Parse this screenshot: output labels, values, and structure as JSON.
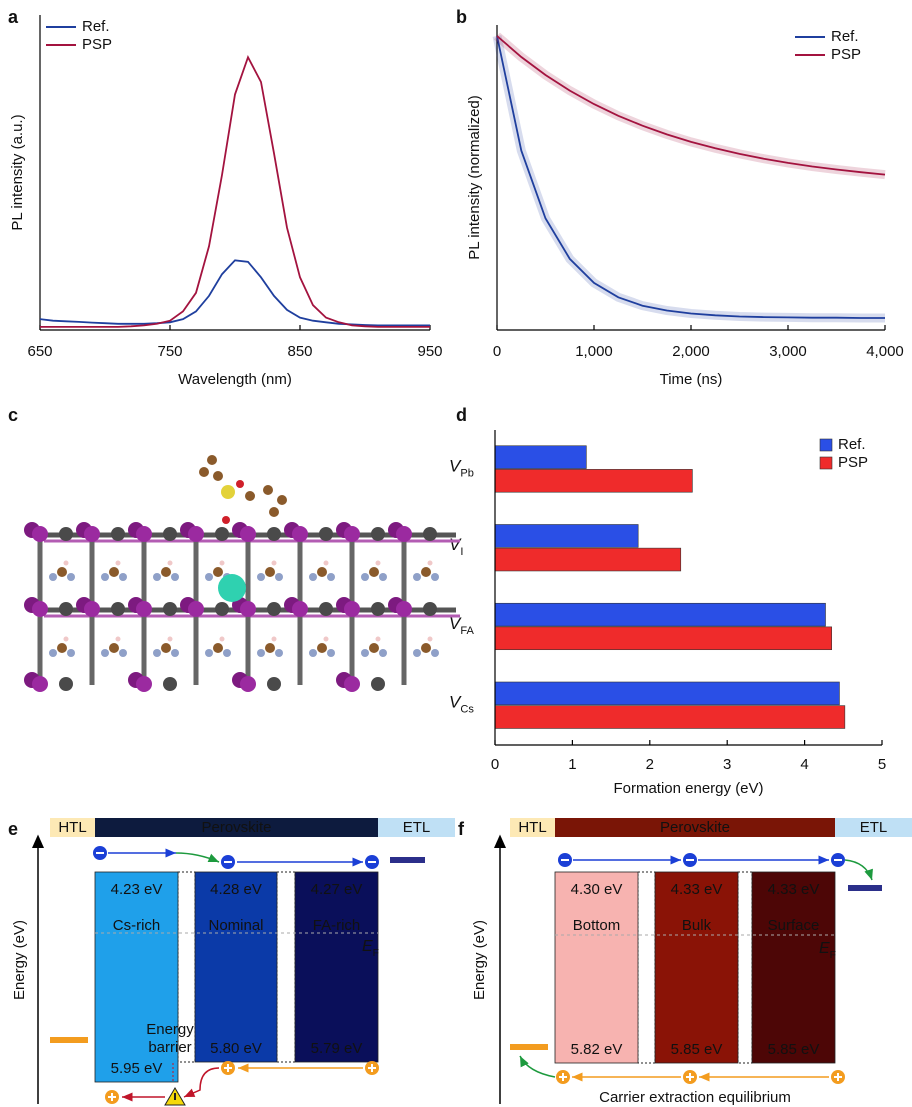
{
  "panel_labels": [
    "a",
    "b",
    "c",
    "d",
    "e",
    "f"
  ],
  "chart_data": [
    {
      "type": "line",
      "x_label": "Wavelength (nm)",
      "y_label": "PL intensity (a.u.)",
      "x": [
        650,
        660,
        670,
        680,
        690,
        700,
        710,
        720,
        730,
        740,
        750,
        760,
        770,
        780,
        790,
        800,
        810,
        820,
        830,
        840,
        850,
        860,
        870,
        880,
        890,
        900,
        910,
        920,
        930,
        940,
        950
      ],
      "series": [
        {
          "name": "Ref.",
          "color": "#1f3f9e",
          "values": [
            0.035,
            0.03,
            0.028,
            0.026,
            0.024,
            0.022,
            0.02,
            0.02,
            0.02,
            0.022,
            0.025,
            0.035,
            0.06,
            0.11,
            0.18,
            0.225,
            0.22,
            0.17,
            0.11,
            0.065,
            0.04,
            0.03,
            0.025,
            0.02,
            0.018,
            0.016,
            0.015,
            0.015,
            0.015,
            0.015,
            0.015
          ]
        },
        {
          "name": "PSP",
          "color": "#a3133f",
          "values": [
            0.01,
            0.01,
            0.01,
            0.01,
            0.01,
            0.01,
            0.01,
            0.012,
            0.015,
            0.02,
            0.03,
            0.06,
            0.12,
            0.27,
            0.5,
            0.76,
            0.88,
            0.8,
            0.57,
            0.33,
            0.17,
            0.08,
            0.04,
            0.025,
            0.015,
            0.012,
            0.01,
            0.01,
            0.01,
            0.01,
            0.01
          ]
        }
      ],
      "xlim": [
        650,
        950
      ],
      "ylim": [
        0,
        1
      ],
      "xticks": [
        650,
        750,
        850,
        950
      ],
      "legend": "upper left"
    },
    {
      "type": "line",
      "x_label": "Time (ns)",
      "y_label": "PL intensity (normalized)",
      "x": [
        0,
        250,
        500,
        750,
        1000,
        1250,
        1500,
        1750,
        2000,
        2250,
        2500,
        2750,
        3000,
        3250,
        3500,
        3750,
        4000
      ],
      "series": [
        {
          "name": "Ref.",
          "color": "#1f3f9e",
          "values": [
            0.98,
            0.598,
            0.372,
            0.237,
            0.157,
            0.109,
            0.081,
            0.065,
            0.055,
            0.049,
            0.045,
            0.043,
            0.042,
            0.041,
            0.041,
            0.04,
            0.04
          ]
        },
        {
          "name": "PSP",
          "color": "#a3133f",
          "values": [
            0.98,
            0.91,
            0.85,
            0.798,
            0.753,
            0.714,
            0.681,
            0.652,
            0.627,
            0.606,
            0.587,
            0.571,
            0.557,
            0.545,
            0.535,
            0.526,
            0.518
          ]
        }
      ],
      "xlim": [
        0,
        4000
      ],
      "ylim": [
        0,
        1
      ],
      "xticks": [
        0,
        {
          "value": 1000,
          "label": "1,000"
        },
        {
          "value": 2000,
          "label": "2,000"
        },
        {
          "value": 3000,
          "label": "3,000"
        },
        {
          "value": 4000,
          "label": "4,000"
        }
      ],
      "legend": "upper right"
    },
    {
      "type": "bar",
      "horizontal": true,
      "x_label": "Formation energy (eV)",
      "categories": [
        {
          "symbol": "V",
          "subscript": "Pb"
        },
        {
          "symbol": "V",
          "subscript": "I"
        },
        {
          "symbol": "V",
          "subscript": "FA"
        },
        {
          "symbol": "V",
          "subscript": "Cs"
        }
      ],
      "series": [
        {
          "name": "Ref.",
          "color": "#2a4fe6",
          "values": [
            1.18,
            1.85,
            4.27,
            4.45
          ]
        },
        {
          "name": "PSP",
          "color": "#ef2b2b",
          "values": [
            2.55,
            2.4,
            4.35,
            4.52
          ]
        }
      ],
      "xlim": [
        0,
        5
      ],
      "xticks": [
        0,
        1,
        2,
        3,
        4,
        5
      ],
      "legend": "upper right"
    }
  ],
  "diagrams": [
    {
      "header": [
        "HTL",
        "Perovskite",
        "ETL"
      ],
      "y_label": "Energy (eV)",
      "blocks": [
        {
          "top": "4.23 eV",
          "name": "Cs-rich",
          "bottom": "5.95 eV"
        },
        {
          "top": "4.28 eV",
          "name": "Nominal",
          "bottom": "5.80 eV"
        },
        {
          "top": "4.27 eV",
          "name": "FA-rich",
          "bottom": "5.79 eV"
        }
      ],
      "fermi_level": {
        "symbol": "E",
        "subscript": "F"
      },
      "annotation": [
        "Energy",
        "barrier"
      ]
    },
    {
      "header": [
        "HTL",
        "Perovskite",
        "ETL"
      ],
      "y_label": "Energy (eV)",
      "blocks": [
        {
          "top": "4.30 eV",
          "name": "Bottom",
          "bottom": "5.82 eV"
        },
        {
          "top": "4.33 eV",
          "name": "Bulk",
          "bottom": "5.85 eV"
        },
        {
          "top": "4.33 eV",
          "name": "Surface",
          "bottom": "5.85 eV"
        }
      ],
      "fermi_level": {
        "symbol": "E",
        "subscript": "F"
      },
      "annotation": [
        "Carrier extraction equilibrium"
      ]
    }
  ]
}
